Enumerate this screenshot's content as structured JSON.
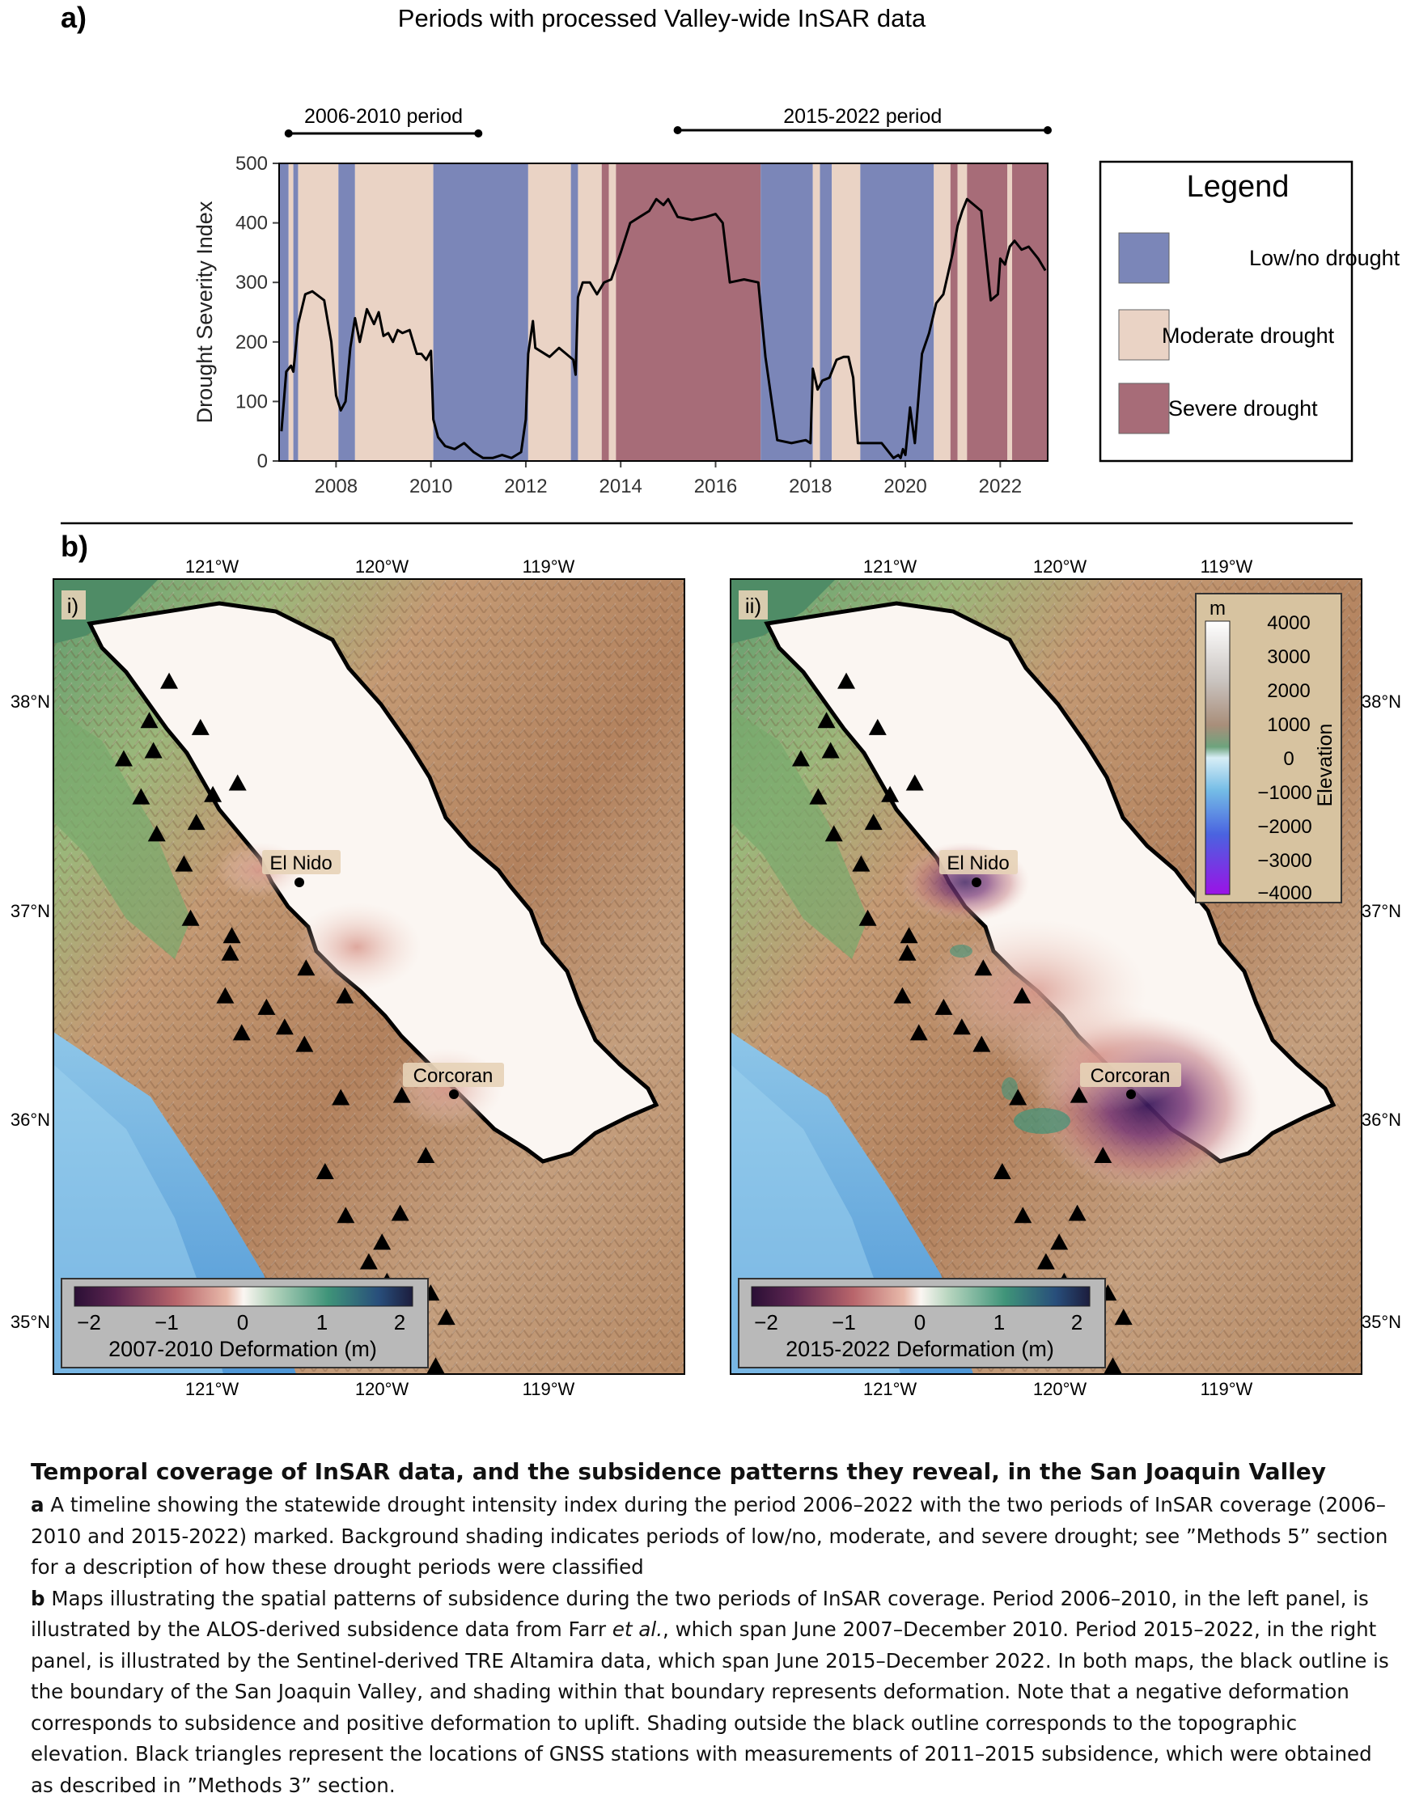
{
  "panel_a": {
    "label": "a)",
    "title": "Periods with processed Valley-wide InSAR data",
    "period_1": {
      "label": "2006-2010 period",
      "start": 2007.0,
      "end": 2011.0
    },
    "period_2": {
      "label": "2015-2022 period",
      "start": 2015.2,
      "end": 2023.0
    },
    "legend": {
      "title": "Legend",
      "items": [
        {
          "label": "Low/no drought",
          "color": "#7b86b8"
        },
        {
          "label": "Moderate drought",
          "color": "#ead3c5"
        },
        {
          "label": "Severe drought",
          "color": "#a76c78"
        }
      ]
    }
  },
  "chart_data": {
    "type": "line",
    "ylabel": "Drought Severity Index",
    "xlim": [
      2006.8,
      2023.0
    ],
    "ylim": [
      0,
      500
    ],
    "x_ticks": [
      2008,
      2010,
      2012,
      2014,
      2016,
      2018,
      2020,
      2022
    ],
    "y_ticks": [
      0,
      100,
      200,
      300,
      400,
      500
    ],
    "background_bands": [
      {
        "start": 2006.8,
        "end": 2007.0,
        "class": "low"
      },
      {
        "start": 2007.0,
        "end": 2007.1,
        "class": "moderate"
      },
      {
        "start": 2007.1,
        "end": 2007.2,
        "class": "low"
      },
      {
        "start": 2007.2,
        "end": 2008.05,
        "class": "moderate"
      },
      {
        "start": 2008.05,
        "end": 2008.4,
        "class": "low"
      },
      {
        "start": 2008.4,
        "end": 2010.05,
        "class": "moderate"
      },
      {
        "start": 2010.05,
        "end": 2012.05,
        "class": "low"
      },
      {
        "start": 2012.05,
        "end": 2012.95,
        "class": "moderate"
      },
      {
        "start": 2012.95,
        "end": 2013.1,
        "class": "low"
      },
      {
        "start": 2013.1,
        "end": 2013.6,
        "class": "moderate"
      },
      {
        "start": 2013.6,
        "end": 2013.75,
        "class": "severe"
      },
      {
        "start": 2013.75,
        "end": 2013.9,
        "class": "moderate"
      },
      {
        "start": 2013.9,
        "end": 2016.95,
        "class": "severe"
      },
      {
        "start": 2016.95,
        "end": 2018.05,
        "class": "low"
      },
      {
        "start": 2018.05,
        "end": 2018.2,
        "class": "moderate"
      },
      {
        "start": 2018.2,
        "end": 2018.45,
        "class": "low"
      },
      {
        "start": 2018.45,
        "end": 2019.05,
        "class": "moderate"
      },
      {
        "start": 2019.05,
        "end": 2020.6,
        "class": "low"
      },
      {
        "start": 2020.6,
        "end": 2020.95,
        "class": "moderate"
      },
      {
        "start": 2020.95,
        "end": 2021.1,
        "class": "severe"
      },
      {
        "start": 2021.1,
        "end": 2021.3,
        "class": "moderate"
      },
      {
        "start": 2021.3,
        "end": 2022.15,
        "class": "severe"
      },
      {
        "start": 2022.15,
        "end": 2022.25,
        "class": "moderate"
      },
      {
        "start": 2022.25,
        "end": 2023.0,
        "class": "severe"
      }
    ],
    "series": [
      {
        "x": [
          2006.85,
          2006.95,
          2007.05,
          2007.1,
          2007.2,
          2007.35,
          2007.5,
          2007.75,
          2007.9,
          2008.0,
          2008.1,
          2008.2,
          2008.3,
          2008.4,
          2008.5,
          2008.65,
          2008.8,
          2008.9,
          2009.0,
          2009.1,
          2009.2,
          2009.3,
          2009.4,
          2009.55,
          2009.7,
          2009.8,
          2009.9,
          2010.0,
          2010.05,
          2010.15,
          2010.3,
          2010.5,
          2010.7,
          2010.9,
          2011.1,
          2011.3,
          2011.5,
          2011.7,
          2011.9,
          2012.0,
          2012.05,
          2012.15,
          2012.2,
          2012.3,
          2012.5,
          2012.7,
          2012.85,
          2013.0,
          2013.05,
          2013.1,
          2013.2,
          2013.35,
          2013.5,
          2013.65,
          2013.8,
          2014.0,
          2014.2,
          2014.4,
          2014.6,
          2014.75,
          2014.9,
          2015.0,
          2015.2,
          2015.5,
          2015.8,
          2016.0,
          2016.15,
          2016.3,
          2016.6,
          2016.9,
          2017.05,
          2017.3,
          2017.6,
          2017.9,
          2018.0,
          2018.05,
          2018.15,
          2018.25,
          2018.4,
          2018.55,
          2018.7,
          2018.8,
          2018.9,
          2018.95,
          2019.0,
          2019.2,
          2019.5,
          2019.75,
          2019.85,
          2019.9,
          2019.95,
          2020.0,
          2020.1,
          2020.2,
          2020.35,
          2020.5,
          2020.65,
          2020.8,
          2021.0,
          2021.1,
          2021.2,
          2021.3,
          2021.45,
          2021.6,
          2021.8,
          2021.95,
          2022.0,
          2022.1,
          2022.2,
          2022.3,
          2022.45,
          2022.6,
          2022.8,
          2022.95
        ],
        "y": [
          50,
          150,
          160,
          150,
          230,
          280,
          285,
          270,
          200,
          110,
          85,
          100,
          190,
          240,
          200,
          255,
          230,
          250,
          210,
          215,
          200,
          220,
          215,
          220,
          180,
          180,
          170,
          185,
          70,
          40,
          25,
          20,
          30,
          15,
          5,
          5,
          10,
          5,
          15,
          70,
          180,
          235,
          190,
          185,
          175,
          190,
          180,
          170,
          145,
          275,
          300,
          300,
          280,
          300,
          305,
          350,
          400,
          410,
          420,
          440,
          430,
          440,
          410,
          405,
          410,
          415,
          400,
          300,
          305,
          300,
          175,
          35,
          30,
          35,
          30,
          155,
          120,
          135,
          140,
          170,
          175,
          175,
          140,
          80,
          30,
          30,
          30,
          5,
          10,
          5,
          20,
          10,
          90,
          30,
          180,
          215,
          265,
          280,
          350,
          395,
          420,
          440,
          430,
          420,
          270,
          280,
          340,
          330,
          360,
          370,
          355,
          360,
          340,
          320
        ]
      }
    ]
  },
  "panel_b": {
    "label": "b)",
    "maps": [
      {
        "label": "i)",
        "top_ticks": [
          "121°W",
          "120°W",
          "119°W"
        ],
        "bottom_ticks": [
          "121°W",
          "120°W",
          "119°W"
        ],
        "lat_ticks": [
          "38°N",
          "37°N",
          "36°N",
          "35°N"
        ],
        "place_1": "El Nido",
        "place_2": "Corcoran",
        "colorbar": {
          "ticks": [
            "−2",
            "−1",
            "0",
            "1",
            "2"
          ],
          "label": "2007-2010 Deformation (m)"
        }
      },
      {
        "label": "ii)",
        "top_ticks": [
          "121°W",
          "120°W",
          "119°W"
        ],
        "bottom_ticks": [
          "121°W",
          "120°W",
          "119°W"
        ],
        "lat_ticks": [
          "38°N",
          "37°N",
          "36°N",
          "35°N"
        ],
        "place_1": "El Nido",
        "place_2": "Corcoran",
        "colorbar": {
          "ticks": [
            "−2",
            "−1",
            "0",
            "1",
            "2"
          ],
          "label": "2015-2022 Deformation (m)"
        }
      }
    ],
    "elevation_colorbar": {
      "unit": "m",
      "label": "Elevation",
      "ticks": [
        "4000",
        "3000",
        "2000",
        "1000",
        "0",
        "−1000",
        "−2000",
        "−3000",
        "−4000"
      ]
    }
  },
  "caption": {
    "title": "Temporal coverage of InSAR data, and the subsidence patterns they reveal, in the San Joaquin Valley",
    "a_label": "a",
    "a_text": " A timeline showing the statewide drought intensity index during the period 2006–2022 with the two periods of InSAR coverage (2006–2010 and 2015-2022) marked. Background shading indicates periods of low/no, moderate, and severe drought; see ”Methods 5” section for a description of how these drought periods were classified",
    "b_label": "b",
    "b_text_1": " Maps illustrating the spatial patterns of subsidence during the two periods of InSAR coverage. Period 2006–2010, in the left panel, is illustrated by the ALOS-derived subsidence data from Farr ",
    "b_italic": "et al.",
    "b_text_2": ", which span June 2007–December 2010. Period 2015–2022, in the right panel, is illustrated by the Sentinel-derived TRE Altamira data, which span June 2015–December 2022. In both maps, the black outline is the boundary of the San Joaquin Valley, and shading within that boundary represents deformation. Note that a negative deformation corresponds to subsidence and positive deformation to uplift. Shading outside the black outline corresponds to the topographic elevation. Black triangles represent the locations of GNSS stations with measurements of 2011–2015 subsidence, which were obtained as described in ”Methods 3” section."
  }
}
